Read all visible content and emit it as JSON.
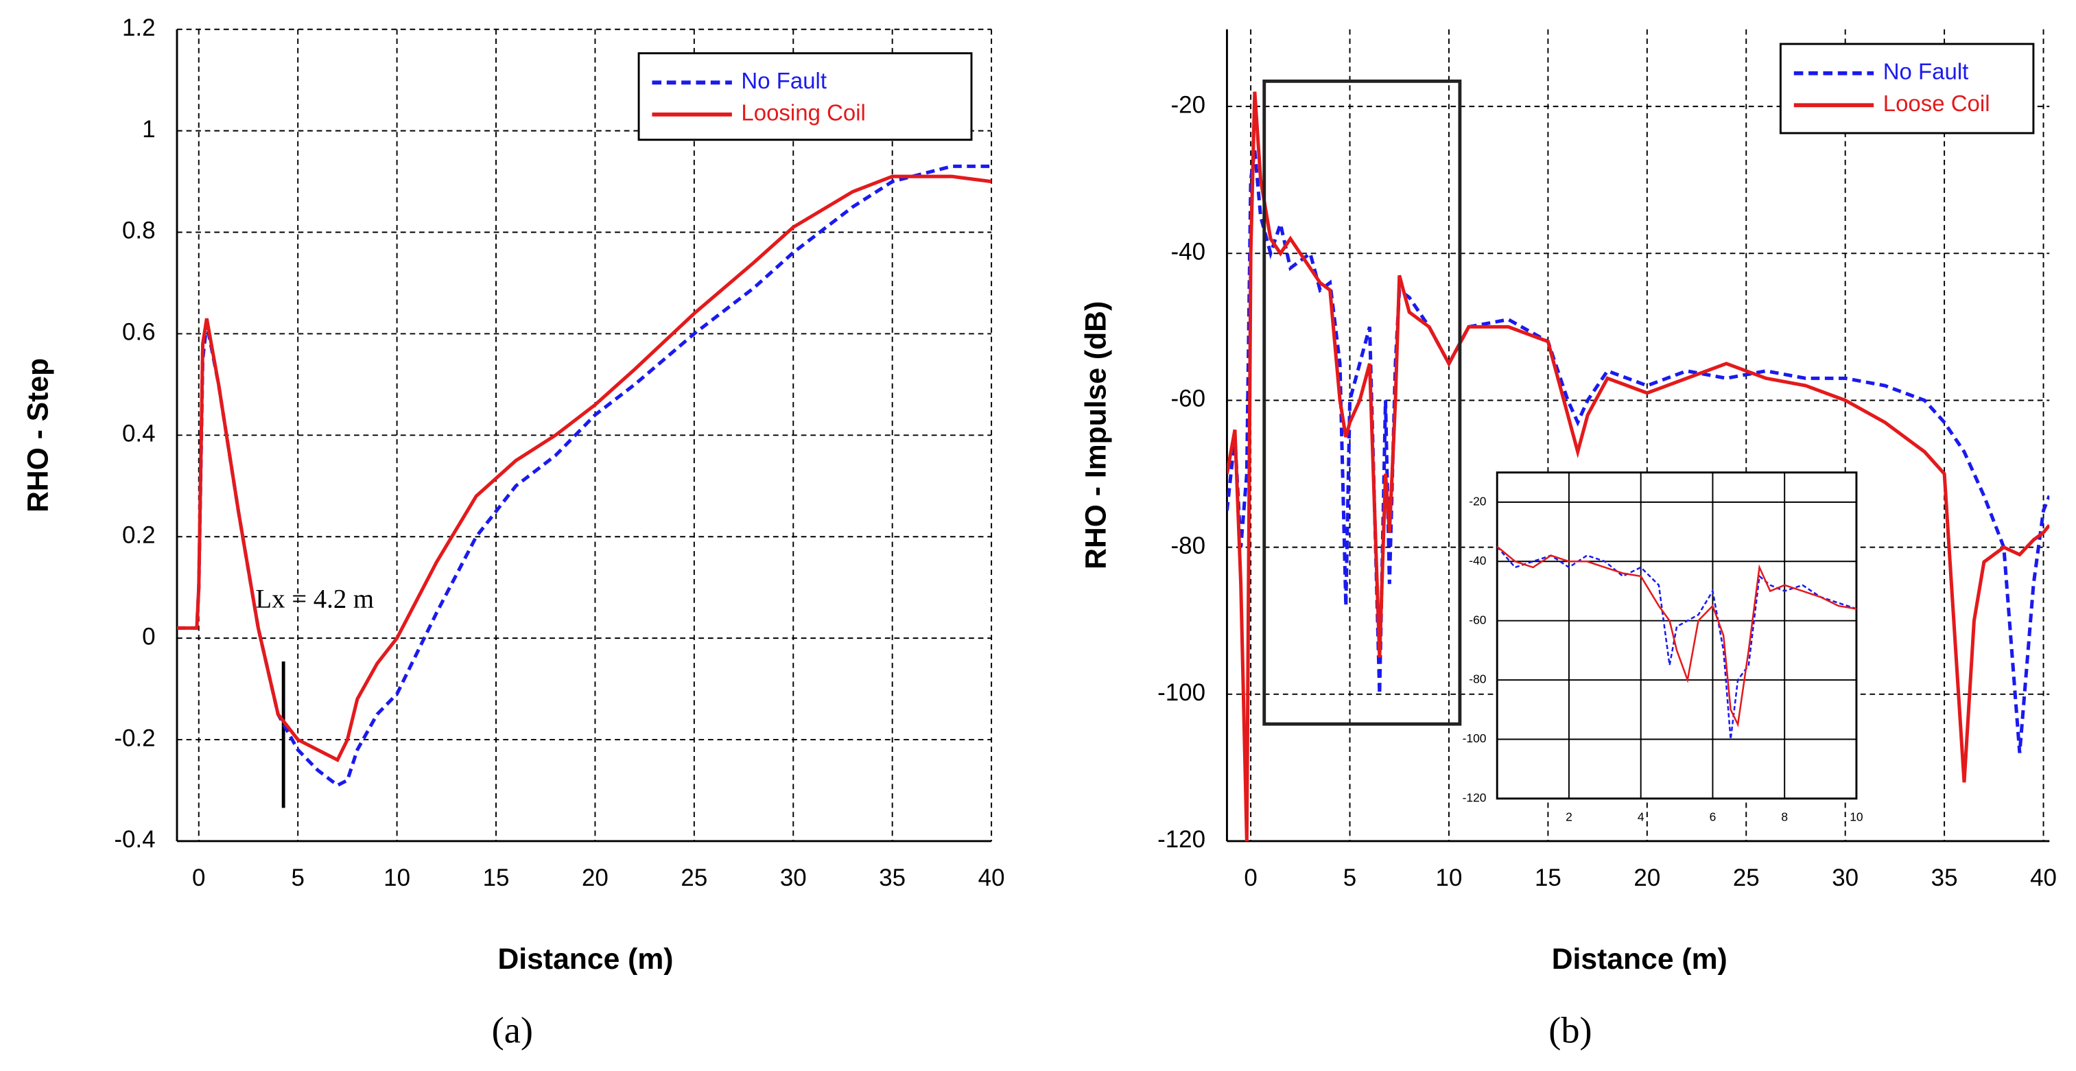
{
  "chart_data": [
    {
      "type": "line",
      "xlabel": "Distance (m)",
      "ylabel": "RHO - Step",
      "caption": "(a)",
      "annotation": "Lx = 4.2 m",
      "grid": "dashed",
      "legend": "upper right",
      "xlim": [
        -1.1,
        40
      ],
      "ylim": [
        -0.4,
        1.2
      ],
      "xticks": [
        0,
        5,
        10,
        15,
        20,
        25,
        30,
        35,
        40
      ],
      "yticks": [
        -0.4,
        -0.2,
        0,
        0.2,
        0.4,
        0.6,
        0.8,
        1,
        1.2
      ],
      "x": [
        -1.1,
        -0.1,
        0,
        0.2,
        0.4,
        1,
        2,
        3,
        4,
        5,
        6,
        7,
        7.5,
        8,
        9,
        10,
        12,
        14,
        16,
        18,
        20,
        22,
        25,
        28,
        30,
        33,
        35,
        38,
        40
      ],
      "series": [
        {
          "name": "No Fault",
          "color": "#1a1aee",
          "linestyle": "dashed",
          "values": [
            0.02,
            0.02,
            0.1,
            0.55,
            0.62,
            0.5,
            0.25,
            0.02,
            -0.15,
            -0.22,
            -0.26,
            -0.29,
            -0.28,
            -0.22,
            -0.15,
            -0.11,
            0.05,
            0.2,
            0.3,
            0.36,
            0.44,
            0.5,
            0.6,
            0.69,
            0.76,
            0.85,
            0.9,
            0.93,
            0.93
          ]
        },
        {
          "name": "Loosing Coil",
          "color": "#e31a1c",
          "linestyle": "solid",
          "values": [
            0.02,
            0.02,
            0.1,
            0.58,
            0.63,
            0.5,
            0.25,
            0.02,
            -0.15,
            -0.2,
            -0.22,
            -0.24,
            -0.2,
            -0.12,
            -0.05,
            0,
            0.15,
            0.28,
            0.35,
            0.4,
            0.46,
            0.53,
            0.64,
            0.74,
            0.81,
            0.88,
            0.91,
            0.91,
            0.9
          ]
        }
      ]
    },
    {
      "type": "line",
      "xlabel": "Distance (m)",
      "ylabel": "RHO - Impulse (dB)",
      "caption": "(b)",
      "grid": "dashed",
      "legend": "upper right",
      "xlim": [
        -1.2,
        40.3
      ],
      "ylim": [
        -120,
        -9.5
      ],
      "xticks": [
        0,
        5,
        10,
        15,
        20,
        25,
        30,
        35,
        40
      ],
      "yticks": [
        -120,
        -100,
        -80,
        -60,
        -40,
        -20
      ],
      "x": [
        -1.2,
        -0.8,
        -0.5,
        -0.2,
        0,
        0.2,
        0.5,
        1,
        1.5,
        2,
        3,
        3.5,
        4,
        4.5,
        4.8,
        5,
        5.5,
        6,
        6.5,
        6.8,
        7,
        7.3,
        7.5,
        8,
        9,
        10,
        11,
        13,
        15,
        16,
        16.5,
        17,
        18,
        20,
        22,
        24,
        26,
        28,
        30,
        32,
        34,
        35,
        36,
        36.5,
        37,
        38,
        38.8,
        39.5,
        40,
        40.3
      ],
      "series": [
        {
          "name": "No Fault",
          "color": "#1a1aee",
          "linestyle": "dashed",
          "values": [
            -75,
            -65,
            -80,
            -70,
            -30,
            -26,
            -35,
            -40,
            -36,
            -42,
            -40,
            -45,
            -44,
            -55,
            -88,
            -60,
            -55,
            -50,
            -100,
            -60,
            -85,
            -55,
            -45,
            -46,
            -50,
            -55,
            -50,
            -49,
            -52,
            -60,
            -63,
            -60,
            -56,
            -58,
            -56,
            -57,
            -56,
            -57,
            -57,
            -58,
            -60,
            -63,
            -67,
            -70,
            -73,
            -80,
            -108,
            -85,
            -75,
            -73
          ]
        },
        {
          "name": "Loose Coil",
          "color": "#e31a1c",
          "linestyle": "solid",
          "values": [
            -70,
            -64,
            -85,
            -120,
            -40,
            -18,
            -30,
            -38,
            -40,
            -38,
            -42,
            -44,
            -45,
            -60,
            -65,
            -63,
            -60,
            -55,
            -95,
            -70,
            -78,
            -60,
            -43,
            -48,
            -50,
            -55,
            -50,
            -50,
            -52,
            -62,
            -67,
            -62,
            -57,
            -59,
            -57,
            -55,
            -57,
            -58,
            -60,
            -63,
            -67,
            -70,
            -112,
            -90,
            -82,
            -80,
            -81,
            -79,
            -78,
            -77
          ]
        }
      ]
    },
    {
      "type": "line",
      "grid": "solid",
      "xlim": [
        0,
        10
      ],
      "ylim": [
        -120,
        -10
      ],
      "xticks": [
        2,
        4,
        6,
        8,
        10
      ],
      "yticks": [
        -120,
        -100,
        -80,
        -60,
        -40,
        -20
      ],
      "x": [
        0,
        0.5,
        1,
        1.5,
        2,
        2.5,
        3,
        3.5,
        4,
        4.5,
        4.8,
        5,
        5.3,
        5.6,
        6,
        6.3,
        6.5,
        6.7,
        7,
        7.3,
        7.6,
        8,
        8.5,
        9,
        9.5,
        10
      ],
      "series": [
        {
          "color": "#1a1aee",
          "linestyle": "dashed",
          "values": [
            -35,
            -42,
            -40,
            -38,
            -42,
            -38,
            -40,
            -45,
            -42,
            -48,
            -75,
            -62,
            -60,
            -58,
            -50,
            -70,
            -100,
            -80,
            -75,
            -45,
            -48,
            -50,
            -48,
            -52,
            -54,
            -56
          ]
        },
        {
          "color": "#e31a1c",
          "linestyle": "solid",
          "values": [
            -35,
            -40,
            -42,
            -38,
            -40,
            -40,
            -42,
            -44,
            -45,
            -55,
            -60,
            -70,
            -80,
            -60,
            -55,
            -65,
            -90,
            -95,
            -70,
            -42,
            -50,
            -48,
            -50,
            -52,
            -55,
            -56
          ]
        }
      ]
    }
  ]
}
